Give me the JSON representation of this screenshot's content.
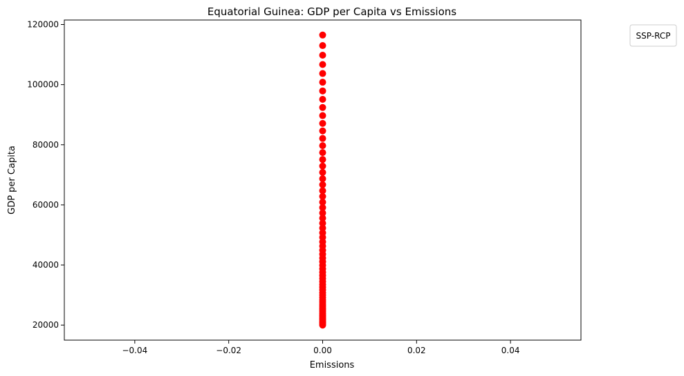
{
  "chart_data": {
    "type": "scatter",
    "title": "Equatorial Guinea: GDP per Capita vs Emissions",
    "xlabel": "Emissions",
    "ylabel": "GDP per Capita",
    "xlim": [
      -0.055,
      0.055
    ],
    "ylim": [
      15000,
      121500
    ],
    "xticks": [
      -0.04,
      -0.02,
      0.0,
      0.02,
      0.04
    ],
    "xtick_labels": [
      "−0.04",
      "−0.02",
      "0.00",
      "0.02",
      "0.04"
    ],
    "yticks": [
      20000,
      40000,
      60000,
      80000,
      100000,
      120000
    ],
    "ytick_labels": [
      "20000",
      "40000",
      "60000",
      "80000",
      "100000",
      "120000"
    ],
    "grid": false,
    "legend": {
      "title": "SSP-RCP",
      "placement": "upper-right-outside"
    },
    "marker_color": "#ff0000",
    "series": [
      {
        "x_constant": 0.0,
        "y": [
          20000,
          20400,
          20800,
          21200,
          21700,
          22200,
          22700,
          23200,
          23800,
          24400,
          25000,
          25600,
          26300,
          27000,
          27700,
          28400,
          29200,
          30000,
          30800,
          31700,
          32600,
          33500,
          34500,
          35500,
          36500,
          37600,
          38700,
          39900,
          41100,
          42300,
          43600,
          44900,
          46300,
          47700,
          49200,
          50700,
          52300,
          53900,
          55600,
          57300,
          59100,
          60900,
          62800,
          64700,
          66700,
          68700,
          70800,
          72900,
          75100,
          77400,
          79700,
          82100,
          84600,
          87100,
          89700,
          92400,
          95100,
          97900,
          100800,
          103700,
          106700,
          109800,
          113000,
          116500
        ]
      }
    ]
  }
}
